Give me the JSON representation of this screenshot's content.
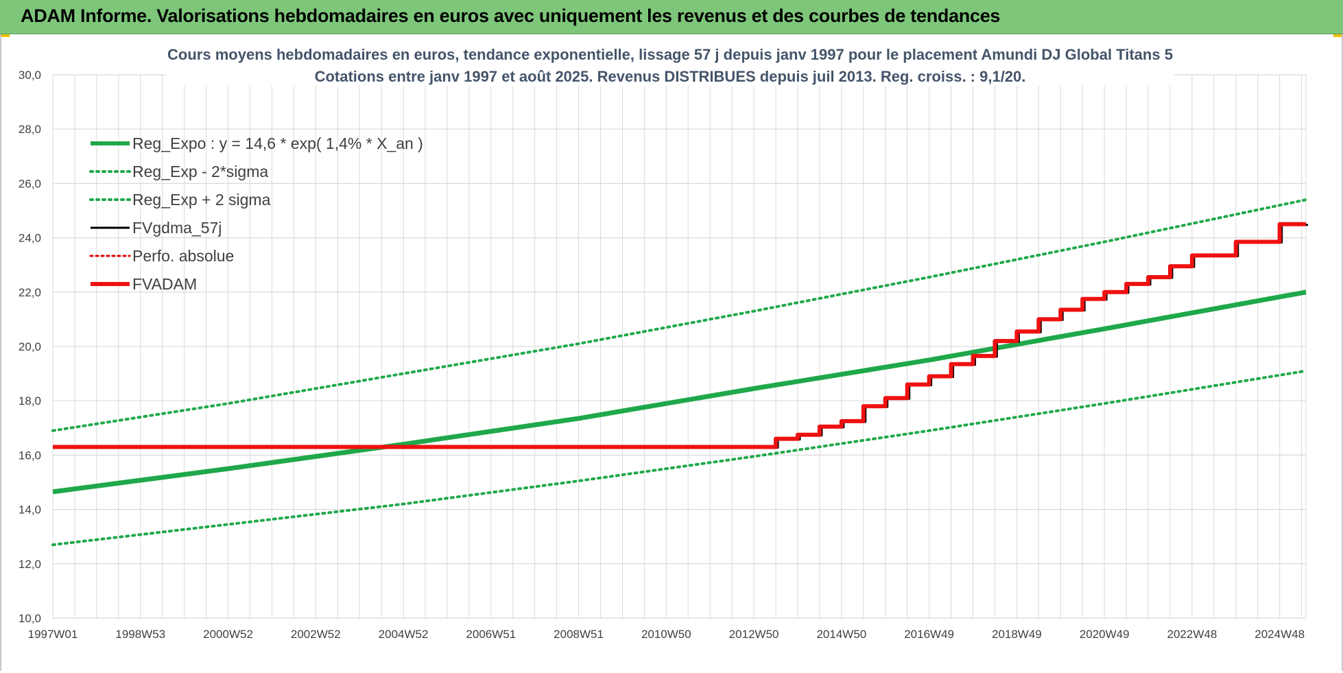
{
  "banner": {
    "title": "ADAM Informe. Valorisations hebdomadaires en euros avec uniquement les revenus et des courbes de tendances"
  },
  "colors": {
    "banner_bg": "#7dc67a",
    "trend_green": "#1fa84a",
    "sigma_green": "#1fa84a",
    "fvgdma_black": "#000000",
    "perfo_red": "#e00000",
    "fvadam_red": "#ee1111",
    "grid": "#d9d9d9",
    "title_text": "#44546a"
  },
  "chart_data": {
    "type": "line",
    "title_lines": [
      "Cours moyens hebdomadaires en euros, tendance exponentielle, lissage 57 j depuis janv 1997 pour le placement Amundi DJ Global Titans 5",
      "Cotations entre janv 1997 et août 2025. Revenus DISTRIBUES depuis juil 2013. Reg. croiss. : 9,1/20."
    ],
    "xlabel": "",
    "ylabel": "",
    "ylim": [
      10,
      30
    ],
    "y_ticks": [
      "10,0",
      "12,0",
      "14,0",
      "16,0",
      "18,0",
      "20,0",
      "22,0",
      "24,0",
      "26,0",
      "28,0",
      "30,0"
    ],
    "x_range_years": [
      1997.0,
      2025.6
    ],
    "x_ticks": [
      {
        "label": "1997W01",
        "year": 1997.0
      },
      {
        "label": "1998W53",
        "year": 1999.0
      },
      {
        "label": "2000W52",
        "year": 2001.0
      },
      {
        "label": "2002W52",
        "year": 2003.0
      },
      {
        "label": "2004W52",
        "year": 2005.0
      },
      {
        "label": "2006W51",
        "year": 2007.0
      },
      {
        "label": "2008W51",
        "year": 2009.0
      },
      {
        "label": "2010W50",
        "year": 2011.0
      },
      {
        "label": "2012W50",
        "year": 2013.0
      },
      {
        "label": "2014W50",
        "year": 2015.0
      },
      {
        "label": "2016W49",
        "year": 2017.0
      },
      {
        "label": "2018W49",
        "year": 2019.0
      },
      {
        "label": "2020W49",
        "year": 2021.0
      },
      {
        "label": "2022W48",
        "year": 2023.0
      },
      {
        "label": "2024W48",
        "year": 2025.0
      }
    ],
    "grid": true,
    "legend_position": "top-left",
    "legend": [
      {
        "label": "Reg_Expo : y = 14,6 * exp( 1,4% *  X_an )",
        "style": "solid-green"
      },
      {
        "label": "Reg_Exp - 2*sigma",
        "style": "dotted-green"
      },
      {
        "label": "Reg_Exp + 2 sigma",
        "style": "dotted-green"
      },
      {
        "label": "FVgdma_57j",
        "style": "solid-black"
      },
      {
        "label": "Perfo. absolue",
        "style": "dotted-red"
      },
      {
        "label": "FVADAM",
        "style": "solid-red"
      }
    ],
    "series": [
      {
        "name": "Reg_Expo : y = 14,6 * exp( 1,4% *  X_an )",
        "x": [
          1997.0,
          2001.0,
          2005.0,
          2009.0,
          2013.0,
          2017.0,
          2021.0,
          2025.6
        ],
        "values": [
          14.65,
          15.5,
          16.4,
          17.35,
          18.45,
          19.5,
          20.65,
          22.0
        ]
      },
      {
        "name": "Reg_Exp - 2*sigma",
        "x": [
          1997.0,
          2001.0,
          2005.0,
          2009.0,
          2013.0,
          2017.0,
          2021.0,
          2025.6
        ],
        "values": [
          12.7,
          13.45,
          14.2,
          15.05,
          15.95,
          16.9,
          17.9,
          19.1
        ]
      },
      {
        "name": "Reg_Exp + 2 sigma",
        "x": [
          1997.0,
          2001.0,
          2005.0,
          2009.0,
          2013.0,
          2017.0,
          2021.0,
          2025.6
        ],
        "values": [
          16.9,
          17.9,
          19.0,
          20.1,
          21.3,
          22.55,
          23.85,
          25.4
        ]
      },
      {
        "name": "FVgdma_57j",
        "x": [
          1997.0,
          2013.0,
          2013.5,
          2014.0,
          2014.5,
          2015.0,
          2015.5,
          2016.0,
          2016.5,
          2017.0,
          2017.5,
          2018.0,
          2018.5,
          2019.0,
          2019.5,
          2020.0,
          2020.5,
          2021.0,
          2021.5,
          2022.0,
          2022.5,
          2023.0,
          2024.0,
          2025.0,
          2025.6
        ],
        "values": [
          16.3,
          16.3,
          16.6,
          16.75,
          17.05,
          17.25,
          17.8,
          18.1,
          18.6,
          18.9,
          19.35,
          19.65,
          20.2,
          20.55,
          21.0,
          21.35,
          21.75,
          22.0,
          22.3,
          22.55,
          22.95,
          23.35,
          23.85,
          24.5,
          24.5
        ]
      },
      {
        "name": "Perfo. absolue",
        "x": [],
        "values": []
      },
      {
        "name": "FVADAM",
        "x": [
          1997.0,
          2013.0,
          2013.5,
          2014.0,
          2014.5,
          2015.0,
          2015.5,
          2016.0,
          2016.5,
          2017.0,
          2017.5,
          2018.0,
          2018.5,
          2019.0,
          2019.5,
          2020.0,
          2020.5,
          2021.0,
          2021.5,
          2022.0,
          2022.5,
          2023.0,
          2024.0,
          2025.0,
          2025.6
        ],
        "values": [
          16.3,
          16.3,
          16.6,
          16.75,
          17.05,
          17.25,
          17.8,
          18.1,
          18.6,
          18.9,
          19.35,
          19.65,
          20.2,
          20.55,
          21.0,
          21.35,
          21.75,
          22.0,
          22.3,
          22.55,
          22.95,
          23.35,
          23.85,
          24.5,
          24.5
        ]
      }
    ]
  }
}
